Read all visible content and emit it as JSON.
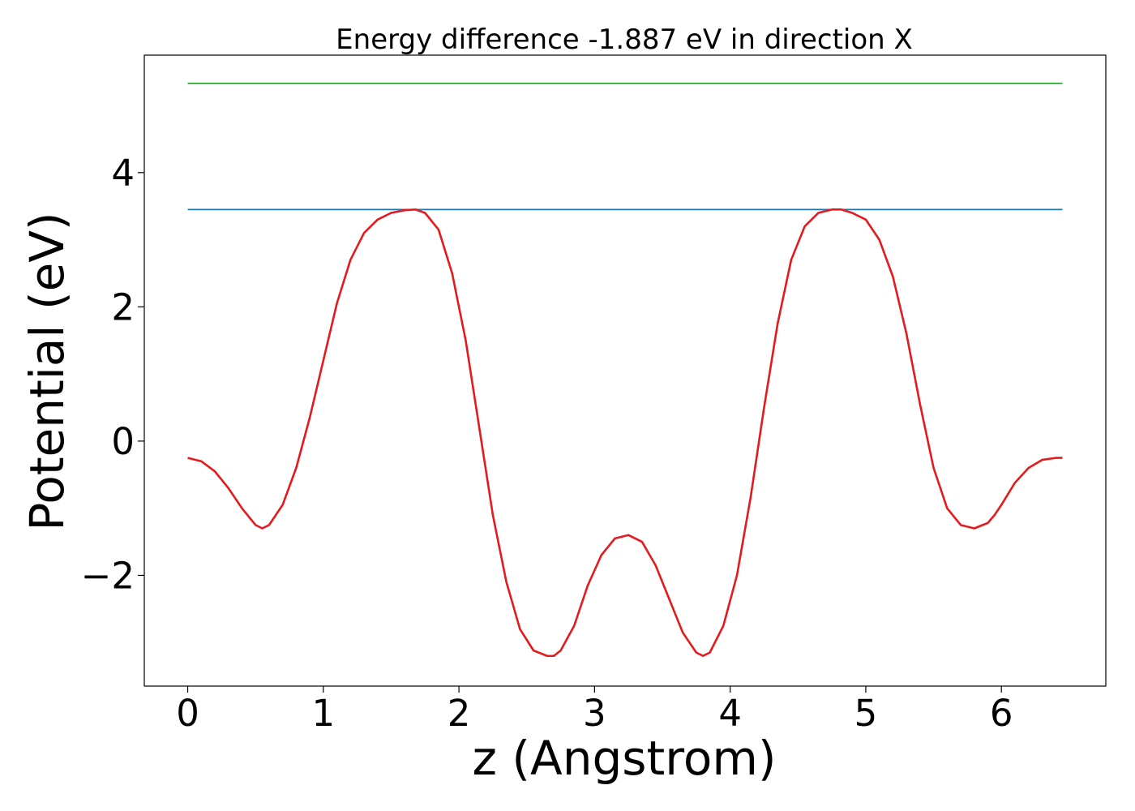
{
  "chart_data": {
    "type": "line",
    "title": "Energy difference -1.887 eV in direction X",
    "xlabel": "z (Angstrom)",
    "ylabel": "Potential (eV)",
    "xlim": [
      -0.32,
      6.77
    ],
    "ylim": [
      -3.65,
      5.75
    ],
    "xticks": [
      0,
      1,
      2,
      3,
      4,
      5,
      6
    ],
    "yticks": [
      -2,
      0,
      2,
      4
    ],
    "xtick_labels": [
      "0",
      "1",
      "2",
      "3",
      "4",
      "5",
      "6"
    ],
    "ytick_labels": [
      "−2",
      "0",
      "2",
      "4"
    ],
    "grid": false,
    "legend": "none",
    "series": [
      {
        "color": "#2ca02c",
        "x": [
          0,
          6.45
        ],
        "y": [
          5.33,
          5.33
        ]
      },
      {
        "color": "#1f77b4",
        "x": [
          0,
          6.45
        ],
        "y": [
          3.45,
          3.45
        ]
      },
      {
        "color": "#e41a1c",
        "x": [
          0,
          0.1,
          0.2,
          0.3,
          0.4,
          0.5,
          0.55,
          0.6,
          0.7,
          0.8,
          0.9,
          1.0,
          1.1,
          1.2,
          1.3,
          1.4,
          1.5,
          1.6,
          1.68,
          1.75,
          1.85,
          1.95,
          2.05,
          2.15,
          2.25,
          2.35,
          2.45,
          2.55,
          2.65,
          2.7,
          2.75,
          2.85,
          2.95,
          3.05,
          3.15,
          3.25,
          3.35,
          3.45,
          3.55,
          3.65,
          3.75,
          3.8,
          3.85,
          3.95,
          4.05,
          4.15,
          4.25,
          4.35,
          4.45,
          4.55,
          4.65,
          4.75,
          4.82,
          4.9,
          5.0,
          5.1,
          5.2,
          5.3,
          5.4,
          5.5,
          5.6,
          5.7,
          5.8,
          5.9,
          5.95,
          6.0,
          6.1,
          6.2,
          6.3,
          6.4,
          6.45
        ],
        "y": [
          -0.25,
          -0.3,
          -0.45,
          -0.7,
          -1.0,
          -1.25,
          -1.3,
          -1.25,
          -0.95,
          -0.4,
          0.35,
          1.2,
          2.05,
          2.7,
          3.1,
          3.3,
          3.4,
          3.44,
          3.45,
          3.4,
          3.15,
          2.5,
          1.5,
          0.2,
          -1.1,
          -2.1,
          -2.8,
          -3.12,
          -3.2,
          -3.2,
          -3.12,
          -2.75,
          -2.15,
          -1.7,
          -1.45,
          -1.4,
          -1.5,
          -1.85,
          -2.35,
          -2.85,
          -3.15,
          -3.2,
          -3.15,
          -2.75,
          -2.0,
          -0.85,
          0.5,
          1.75,
          2.7,
          3.2,
          3.4,
          3.45,
          3.45,
          3.4,
          3.3,
          3.0,
          2.45,
          1.6,
          0.55,
          -0.4,
          -1.0,
          -1.25,
          -1.3,
          -1.22,
          -1.1,
          -0.95,
          -0.62,
          -0.4,
          -0.28,
          -0.25,
          -0.25
        ]
      }
    ]
  }
}
